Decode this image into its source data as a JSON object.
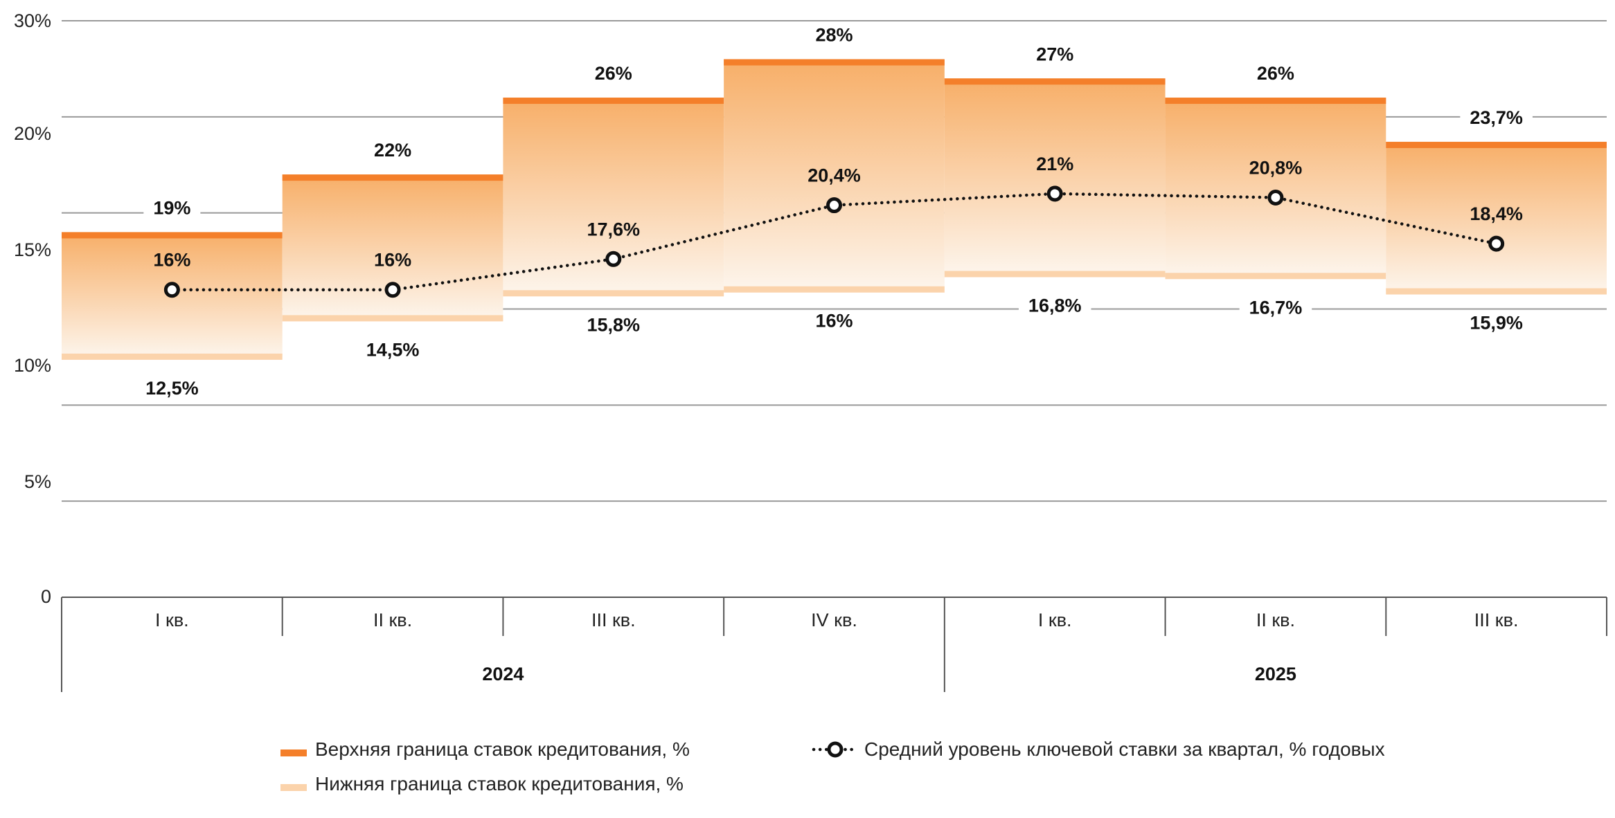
{
  "chart_data": {
    "type": "bar",
    "categories": [
      "I кв.",
      "II кв.",
      "III кв.",
      "IV кв.",
      "I кв.",
      "II кв.",
      "III кв."
    ],
    "groups": [
      {
        "label": "2024",
        "from": 0,
        "to": 3
      },
      {
        "label": "2025",
        "from": 4,
        "to": 6
      }
    ],
    "y_ticks": [
      "30%",
      "20%",
      "15%",
      "10%",
      "5%",
      "0"
    ],
    "ylim": [
      0,
      30
    ],
    "grid": true,
    "legend_position": "bottom",
    "series": [
      {
        "name": "Верхняя граница ставок кредитования, %",
        "values": [
          19,
          22,
          26,
          28,
          27,
          26,
          23.7
        ],
        "labels": [
          "19%",
          "22%",
          "26%",
          "28%",
          "27%",
          "26%",
          "23,7%"
        ],
        "color": "#f47f2a"
      },
      {
        "name": "Нижняя граница ставок кредитования, %",
        "values": [
          12.5,
          14.5,
          15.8,
          16,
          16.8,
          16.7,
          15.9
        ],
        "labels": [
          "12,5%",
          "14,5%",
          "15,8%",
          "16%",
          "16,8%",
          "16,7%",
          "15,9%"
        ],
        "color": "#fbd3ab"
      },
      {
        "name": "Средний уровень ключевой ставки за квартал, % годовых",
        "values": [
          16,
          16,
          17.6,
          20.4,
          21,
          20.8,
          18.4
        ],
        "labels": [
          "16%",
          "16%",
          "17,6%",
          "20,4%",
          "21%",
          "20,8%",
          "18,4%"
        ],
        "color": "#111111"
      }
    ],
    "range_fill_colors": [
      "#f7ae67",
      "#fdf5ec"
    ]
  }
}
